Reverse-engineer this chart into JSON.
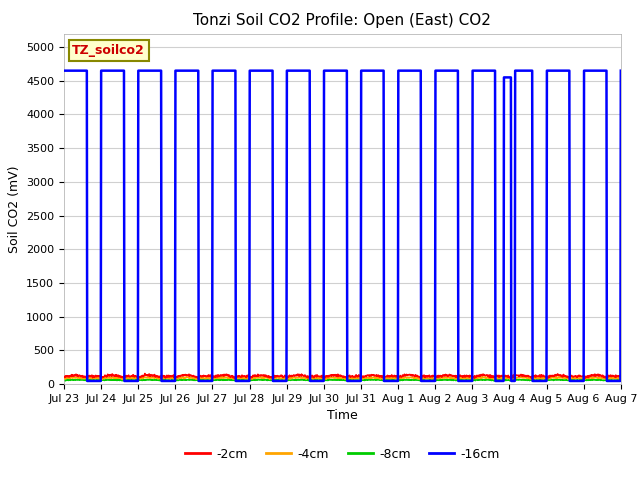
{
  "title": "Tonzi Soil CO2 Profile: Open (East) CO2",
  "ylabel": "Soil CO2 (mV)",
  "xlabel": "Time",
  "label_text": "TZ_soilco2",
  "ylim": [
    0,
    5200
  ],
  "yticks": [
    0,
    500,
    1000,
    1500,
    2000,
    2500,
    3000,
    3500,
    4000,
    4500,
    5000
  ],
  "colors": {
    "2cm": "#ff0000",
    "4cm": "#ffa500",
    "8cm": "#00cc00",
    "16cm": "#0000ff"
  },
  "legend_labels": [
    "-2cm",
    "-4cm",
    "-8cm",
    "-16cm"
  ],
  "fig_bg_color": "#ffffff",
  "plot_bg_color": "#ffffff",
  "grid_color": "#d0d0d0",
  "high_val": 4650,
  "n_days": 15,
  "title_fontsize": 11,
  "axis_label_fontsize": 9,
  "tick_fontsize": 8,
  "tick_labels": [
    "Jul 23",
    "Jul 24",
    "Jul 25",
    "Jul 26",
    "Jul 27",
    "Jul 28",
    "Jul 29",
    "Jul 30",
    "Jul 31",
    "Aug 1",
    "Aug 2",
    "Aug 3",
    "Aug 4",
    "Aug 5",
    "Aug 6",
    "Aug 7"
  ]
}
